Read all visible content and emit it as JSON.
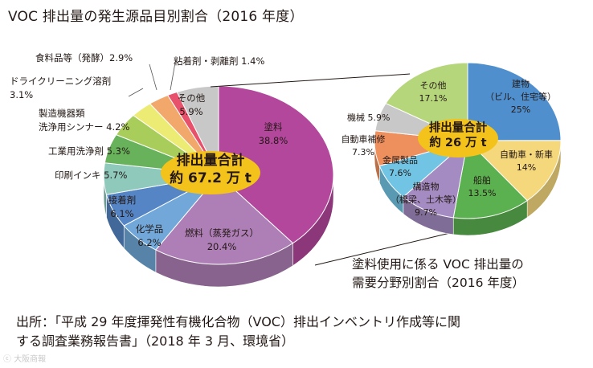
{
  "title": "VOC 排出量の発生源品目別割合（2016 年度）",
  "subtitle_lines": [
    "塗料使用に係る VOC 排出量の",
    "需要分野別割合（2016 年度）"
  ],
  "source_lines": [
    "出所：「平成 29 年度揮発性有機化合物（VOC）排出インベントリ作成等に関",
    "する調査業務報告書」（2018 年 3 月、環境省）"
  ],
  "watermark": "大阪商報",
  "chart_data": [
    {
      "type": "pie",
      "title": "VOC 排出量の発生源品目別割合（2016 年度）",
      "center_label": [
        "排出量合計",
        "約 67.2 万 t"
      ],
      "unit": "%",
      "slices": [
        {
          "label": "塗料",
          "value": 38.8,
          "value_text": "38.8%",
          "color": "#b2479b"
        },
        {
          "label": "燃料（蒸発ガス）",
          "value": 20.4,
          "value_text": "20.4%",
          "color": "#ae7fb6"
        },
        {
          "label": "化学品",
          "value": 6.2,
          "value_text": "6.2%",
          "color": "#71a8d9"
        },
        {
          "label": "接着剤",
          "value": 6.1,
          "value_text": "6.1%",
          "color": "#5585c4"
        },
        {
          "label": "印刷インキ",
          "value": 5.7,
          "value_text": "5.7%",
          "color": "#8ec9bc"
        },
        {
          "label": "工業用洗浄剤",
          "value": 5.3,
          "value_text": "5.3%",
          "color": "#67b25a"
        },
        {
          "label": "製造機器類洗浄用シンナー",
          "value": 4.2,
          "value_text": "4.2%",
          "color": "#a9cd5a"
        },
        {
          "label": "ドライクリーニング溶剤",
          "value": 3.1,
          "value_text": "3.1%",
          "color": "#ecec75"
        },
        {
          "label": "食料品等（発酵）",
          "value": 2.9,
          "value_text": "2.9%",
          "color": "#f2a86a"
        },
        {
          "label": "粘着剤・剥離剤",
          "value": 1.4,
          "value_text": "1.4%",
          "color": "#e8516c"
        },
        {
          "label": "その他",
          "value": 5.9,
          "value_text": "5.9%",
          "color": "#c8c8c8"
        }
      ],
      "slice_label_text": {
        "塗料": [
          "塗料",
          "38.8%"
        ],
        "燃料（蒸発ガス）": [
          "燃料（蒸発ガス）",
          "20.4%"
        ],
        "化学品": [
          "化学品",
          "6.2%"
        ],
        "接着剤": [
          "接着剤",
          "6.1%"
        ],
        "印刷インキ": [
          "印刷インキ 5.7%"
        ],
        "工業用洗浄剤": [
          "工業用洗浄剤 5.3%"
        ],
        "製造機器類洗浄用シンナー": [
          "製造機器類",
          "洗浄用シンナー 4.2%"
        ],
        "ドライクリーニング溶剤": [
          "ドライクリーニング溶剤",
          "3.1%"
        ],
        "食料品等（発酵）": [
          "食料品等（発酵）2.9%"
        ],
        "粘着剤・剥離剤": [
          "粘着剤・剥離剤 1.4%"
        ],
        "その他": [
          "その他",
          "5.9%"
        ]
      }
    },
    {
      "type": "pie",
      "title": "塗料使用に係る VOC 排出量の需要分野別割合（2016 年度）",
      "center_label": [
        "排出量合計",
        "約 26 万 t"
      ],
      "unit": "%",
      "slices": [
        {
          "label": "建物（ビル、住宅等）",
          "value": 25,
          "value_text": "25%",
          "color": "#4f8fcd"
        },
        {
          "label": "自動車・新車",
          "value": 14,
          "value_text": "14%",
          "color": "#f5d77c"
        },
        {
          "label": "船舶",
          "value": 13.5,
          "value_text": "13.5%",
          "color": "#5bb04f"
        },
        {
          "label": "構造物（橋梁、土木等）",
          "value": 9.7,
          "value_text": "9.7%",
          "color": "#a48cc2"
        },
        {
          "label": "金属製品",
          "value": 7.6,
          "value_text": "7.6%",
          "color": "#72c4e4"
        },
        {
          "label": "自動車補修",
          "value": 7.3,
          "value_text": "7.3%",
          "color": "#ee8f5e"
        },
        {
          "label": "機械",
          "value": 5.9,
          "value_text": "5.9%",
          "color": "#c8c8c8"
        },
        {
          "label": "その他",
          "value": 17.1,
          "value_text": "17.1%",
          "color": "#b6d67b"
        }
      ],
      "slice_label_text": {
        "建物（ビル、住宅等）": [
          "建物",
          "（ビル、住宅等）",
          "25%"
        ],
        "自動車・新車": [
          "自動車・新車",
          "14%"
        ],
        "船舶": [
          "船舶",
          "13.5%"
        ],
        "構造物（橋梁、土木等）": [
          "構造物",
          "（橋梁、土木等）",
          "9.7%"
        ],
        "金属製品": [
          "金属製品",
          "7.6%"
        ],
        "自動車補修": [
          "自動車補修",
          "7.3%"
        ],
        "機械": [
          "機械 5.9%"
        ],
        "その他": [
          "その他",
          "17.1%"
        ]
      }
    }
  ]
}
